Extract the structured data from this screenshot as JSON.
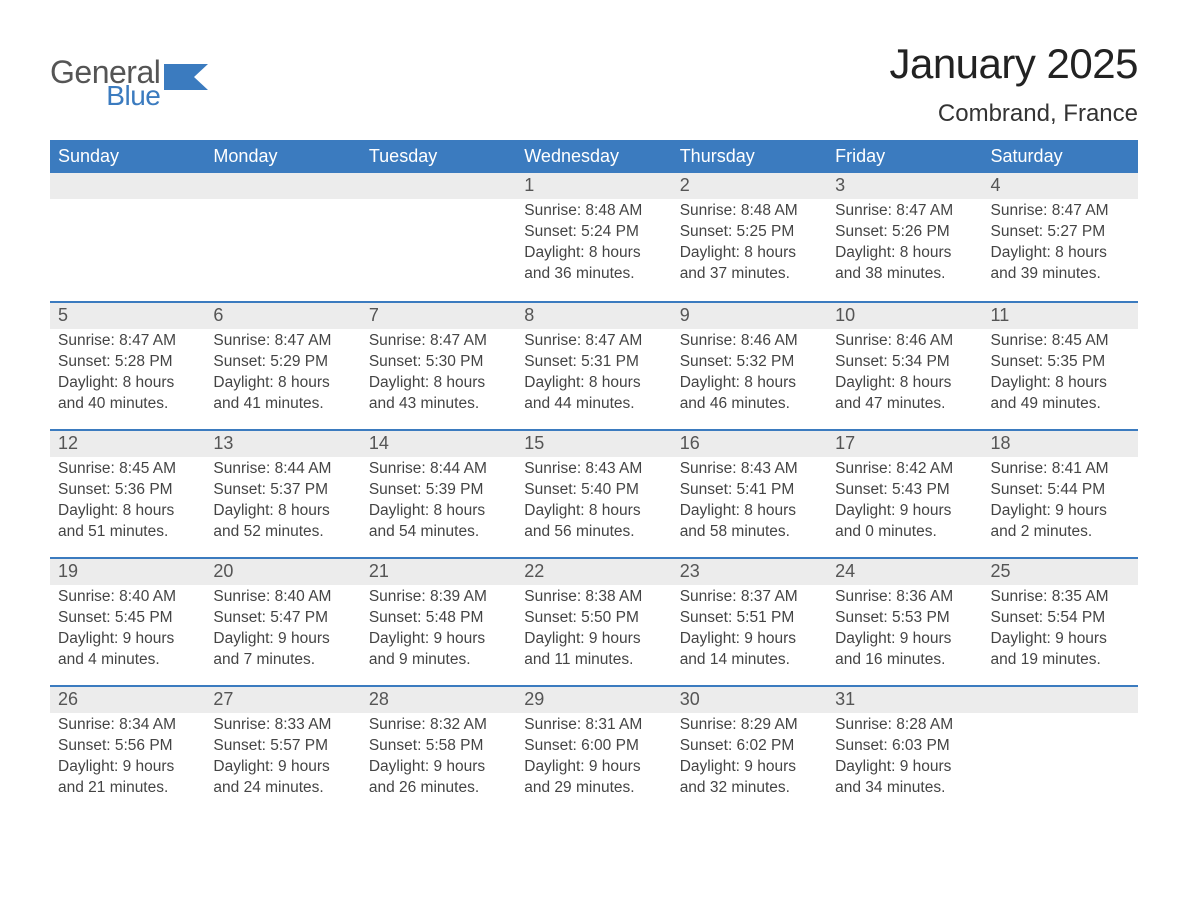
{
  "brand": {
    "word1": "General",
    "word2": "Blue"
  },
  "title": "January 2025",
  "location": "Combrand, France",
  "colors": {
    "header_bg": "#3b7bbf",
    "header_text": "#ffffff",
    "daynum_bg": "#ececec",
    "body_text": "#444444",
    "rule": "#3b7bbf",
    "page_bg": "#ffffff",
    "logo_gray": "#555555",
    "logo_blue": "#3b7bbf"
  },
  "layout": {
    "columns": 7,
    "weeks": 5,
    "title_fontsize_pt": 32,
    "location_fontsize_pt": 18,
    "weekday_fontsize_pt": 14,
    "body_fontsize_pt": 12,
    "daynum_fontsize_pt": 14
  },
  "weekdays": [
    "Sunday",
    "Monday",
    "Tuesday",
    "Wednesday",
    "Thursday",
    "Friday",
    "Saturday"
  ],
  "weeks": [
    [
      {
        "n": "",
        "sunrise": "",
        "sunset": "",
        "daylight": ""
      },
      {
        "n": "",
        "sunrise": "",
        "sunset": "",
        "daylight": ""
      },
      {
        "n": "",
        "sunrise": "",
        "sunset": "",
        "daylight": ""
      },
      {
        "n": "1",
        "sunrise": "Sunrise: 8:48 AM",
        "sunset": "Sunset: 5:24 PM",
        "daylight": "Daylight: 8 hours and 36 minutes."
      },
      {
        "n": "2",
        "sunrise": "Sunrise: 8:48 AM",
        "sunset": "Sunset: 5:25 PM",
        "daylight": "Daylight: 8 hours and 37 minutes."
      },
      {
        "n": "3",
        "sunrise": "Sunrise: 8:47 AM",
        "sunset": "Sunset: 5:26 PM",
        "daylight": "Daylight: 8 hours and 38 minutes."
      },
      {
        "n": "4",
        "sunrise": "Sunrise: 8:47 AM",
        "sunset": "Sunset: 5:27 PM",
        "daylight": "Daylight: 8 hours and 39 minutes."
      }
    ],
    [
      {
        "n": "5",
        "sunrise": "Sunrise: 8:47 AM",
        "sunset": "Sunset: 5:28 PM",
        "daylight": "Daylight: 8 hours and 40 minutes."
      },
      {
        "n": "6",
        "sunrise": "Sunrise: 8:47 AM",
        "sunset": "Sunset: 5:29 PM",
        "daylight": "Daylight: 8 hours and 41 minutes."
      },
      {
        "n": "7",
        "sunrise": "Sunrise: 8:47 AM",
        "sunset": "Sunset: 5:30 PM",
        "daylight": "Daylight: 8 hours and 43 minutes."
      },
      {
        "n": "8",
        "sunrise": "Sunrise: 8:47 AM",
        "sunset": "Sunset: 5:31 PM",
        "daylight": "Daylight: 8 hours and 44 minutes."
      },
      {
        "n": "9",
        "sunrise": "Sunrise: 8:46 AM",
        "sunset": "Sunset: 5:32 PM",
        "daylight": "Daylight: 8 hours and 46 minutes."
      },
      {
        "n": "10",
        "sunrise": "Sunrise: 8:46 AM",
        "sunset": "Sunset: 5:34 PM",
        "daylight": "Daylight: 8 hours and 47 minutes."
      },
      {
        "n": "11",
        "sunrise": "Sunrise: 8:45 AM",
        "sunset": "Sunset: 5:35 PM",
        "daylight": "Daylight: 8 hours and 49 minutes."
      }
    ],
    [
      {
        "n": "12",
        "sunrise": "Sunrise: 8:45 AM",
        "sunset": "Sunset: 5:36 PM",
        "daylight": "Daylight: 8 hours and 51 minutes."
      },
      {
        "n": "13",
        "sunrise": "Sunrise: 8:44 AM",
        "sunset": "Sunset: 5:37 PM",
        "daylight": "Daylight: 8 hours and 52 minutes."
      },
      {
        "n": "14",
        "sunrise": "Sunrise: 8:44 AM",
        "sunset": "Sunset: 5:39 PM",
        "daylight": "Daylight: 8 hours and 54 minutes."
      },
      {
        "n": "15",
        "sunrise": "Sunrise: 8:43 AM",
        "sunset": "Sunset: 5:40 PM",
        "daylight": "Daylight: 8 hours and 56 minutes."
      },
      {
        "n": "16",
        "sunrise": "Sunrise: 8:43 AM",
        "sunset": "Sunset: 5:41 PM",
        "daylight": "Daylight: 8 hours and 58 minutes."
      },
      {
        "n": "17",
        "sunrise": "Sunrise: 8:42 AM",
        "sunset": "Sunset: 5:43 PM",
        "daylight": "Daylight: 9 hours and 0 minutes."
      },
      {
        "n": "18",
        "sunrise": "Sunrise: 8:41 AM",
        "sunset": "Sunset: 5:44 PM",
        "daylight": "Daylight: 9 hours and 2 minutes."
      }
    ],
    [
      {
        "n": "19",
        "sunrise": "Sunrise: 8:40 AM",
        "sunset": "Sunset: 5:45 PM",
        "daylight": "Daylight: 9 hours and 4 minutes."
      },
      {
        "n": "20",
        "sunrise": "Sunrise: 8:40 AM",
        "sunset": "Sunset: 5:47 PM",
        "daylight": "Daylight: 9 hours and 7 minutes."
      },
      {
        "n": "21",
        "sunrise": "Sunrise: 8:39 AM",
        "sunset": "Sunset: 5:48 PM",
        "daylight": "Daylight: 9 hours and 9 minutes."
      },
      {
        "n": "22",
        "sunrise": "Sunrise: 8:38 AM",
        "sunset": "Sunset: 5:50 PM",
        "daylight": "Daylight: 9 hours and 11 minutes."
      },
      {
        "n": "23",
        "sunrise": "Sunrise: 8:37 AM",
        "sunset": "Sunset: 5:51 PM",
        "daylight": "Daylight: 9 hours and 14 minutes."
      },
      {
        "n": "24",
        "sunrise": "Sunrise: 8:36 AM",
        "sunset": "Sunset: 5:53 PM",
        "daylight": "Daylight: 9 hours and 16 minutes."
      },
      {
        "n": "25",
        "sunrise": "Sunrise: 8:35 AM",
        "sunset": "Sunset: 5:54 PM",
        "daylight": "Daylight: 9 hours and 19 minutes."
      }
    ],
    [
      {
        "n": "26",
        "sunrise": "Sunrise: 8:34 AM",
        "sunset": "Sunset: 5:56 PM",
        "daylight": "Daylight: 9 hours and 21 minutes."
      },
      {
        "n": "27",
        "sunrise": "Sunrise: 8:33 AM",
        "sunset": "Sunset: 5:57 PM",
        "daylight": "Daylight: 9 hours and 24 minutes."
      },
      {
        "n": "28",
        "sunrise": "Sunrise: 8:32 AM",
        "sunset": "Sunset: 5:58 PM",
        "daylight": "Daylight: 9 hours and 26 minutes."
      },
      {
        "n": "29",
        "sunrise": "Sunrise: 8:31 AM",
        "sunset": "Sunset: 6:00 PM",
        "daylight": "Daylight: 9 hours and 29 minutes."
      },
      {
        "n": "30",
        "sunrise": "Sunrise: 8:29 AM",
        "sunset": "Sunset: 6:02 PM",
        "daylight": "Daylight: 9 hours and 32 minutes."
      },
      {
        "n": "31",
        "sunrise": "Sunrise: 8:28 AM",
        "sunset": "Sunset: 6:03 PM",
        "daylight": "Daylight: 9 hours and 34 minutes."
      },
      {
        "n": "",
        "sunrise": "",
        "sunset": "",
        "daylight": ""
      }
    ]
  ]
}
